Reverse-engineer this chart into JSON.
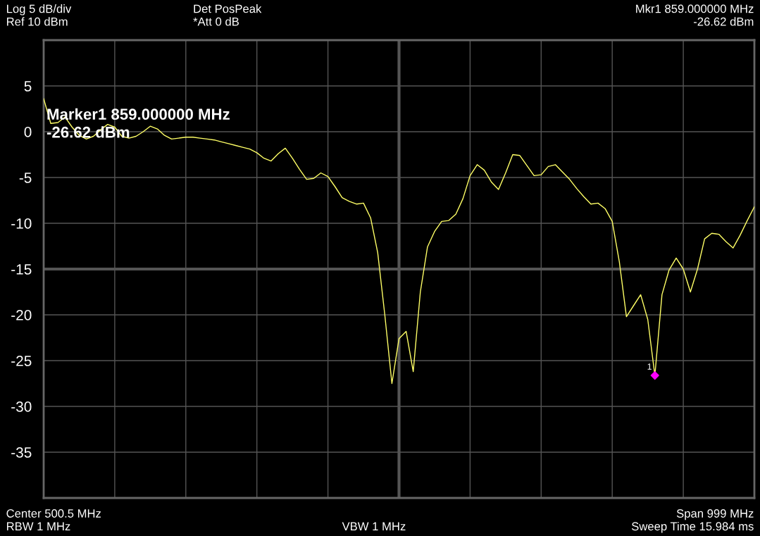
{
  "chart_data": {
    "type": "line",
    "annotations": [
      "Log 5 dB/div",
      "Ref 10 dBm",
      "Det PosPeak",
      "*Att 0 dB",
      "Mkr1 859.000000 MHz",
      "-26.62 dBm",
      "Center 500.5 MHz",
      "RBW 1 MHz",
      "VBW 1 MHz",
      "Span 999 MHz",
      "Sweep Time 15.984 ms",
      "Marker1 859.000000 MHz\n-26.62 dBm",
      {
        "text": "1",
        "y": -26.62
      }
    ],
    "categories": [
      null,
      null,
      null,
      null,
      null,
      null,
      null,
      null,
      null,
      null,
      null,
      null,
      null,
      null,
      null,
      null,
      null,
      null,
      null,
      null,
      null,
      null,
      null,
      null,
      null,
      null,
      null,
      null,
      null,
      null,
      null,
      null,
      null,
      null,
      null,
      null,
      null,
      null,
      null,
      null,
      null,
      null,
      null,
      null,
      null,
      null,
      null,
      null,
      null,
      null,
      null,
      null,
      null,
      null,
      null,
      null,
      null,
      null,
      null,
      null,
      null,
      null,
      null,
      null,
      null,
      null,
      null,
      null,
      null,
      null,
      null,
      null,
      null,
      null,
      null,
      null,
      null,
      null,
      null,
      null,
      null,
      null,
      null,
      null,
      null,
      null,
      null,
      null,
      null,
      null,
      null,
      null,
      null,
      null,
      null,
      null,
      null,
      null,
      null,
      null,
      null
    ],
    "ylim": [
      -40,
      10
    ],
    "yticks": [
      5,
      0,
      -5,
      -10,
      -15,
      -20,
      -25,
      -30,
      -35
    ],
    "tick_labels": "y",
    "grid": true,
    "series": [
      {
        "color": "#ffff66",
        "values": [
          3.6,
          0.9,
          1.0,
          1.6,
          0.5,
          -0.4,
          -0.8,
          -0.5,
          0.2,
          0.8,
          0.5,
          -0.5,
          -0.7,
          -0.5,
          0.0,
          0.6,
          0.3,
          -0.4,
          -0.8,
          -0.7,
          -0.6,
          -0.6,
          -0.7,
          -0.8,
          -0.9,
          -1.1,
          -1.3,
          -1.5,
          -1.7,
          -1.9,
          -2.3,
          -2.9,
          -3.2,
          -2.4,
          -1.8,
          -2.9,
          -4.1,
          -5.2,
          -5.1,
          -4.5,
          -4.9,
          -6.0,
          -7.2,
          -7.6,
          -7.9,
          -7.8,
          -9.4,
          -13.2,
          -20.0,
          -27.5,
          -22.6,
          -21.8,
          -26.2,
          -17.5,
          -12.6,
          -10.9,
          -9.8,
          -9.7,
          -9.0,
          -7.3,
          -4.8,
          -3.6,
          -4.2,
          -5.5,
          -6.3,
          -4.5,
          -2.5,
          -2.6,
          -3.7,
          -4.8,
          -4.7,
          -3.8,
          -3.6,
          -4.4,
          -5.2,
          -6.2,
          -7.1,
          -7.9,
          -7.8,
          -8.4,
          -9.8,
          -14.2,
          -20.2,
          -19.0,
          -17.8,
          -20.5,
          -26.62,
          -17.8,
          -15.1,
          -13.8,
          -15.0,
          -17.5,
          -15.0,
          -11.7,
          -11.1,
          -11.2,
          -12.0,
          -12.7,
          -11.3,
          -9.7,
          -8.2
        ]
      },
      {
        "type": "scatter",
        "color": "#ff00ff",
        "marker": "diamond",
        "values": [
          null,
          null,
          null,
          null,
          null,
          null,
          null,
          null,
          null,
          null,
          null,
          null,
          null,
          null,
          null,
          null,
          null,
          null,
          null,
          null,
          null,
          null,
          null,
          null,
          null,
          null,
          null,
          null,
          null,
          null,
          null,
          null,
          null,
          null,
          null,
          null,
          null,
          null,
          null,
          null,
          null,
          null,
          null,
          null,
          null,
          null,
          null,
          null,
          null,
          null,
          null,
          null,
          null,
          null,
          null,
          null,
          null,
          null,
          null,
          null,
          null,
          null,
          null,
          null,
          null,
          null,
          null,
          null,
          null,
          null,
          null,
          null,
          null,
          null,
          null,
          null,
          null,
          null,
          null,
          null,
          null,
          null,
          null,
          null,
          null,
          null,
          -26.62,
          null,
          null,
          null,
          null,
          null,
          null,
          null,
          null,
          null,
          null,
          null,
          null,
          null,
          null
        ]
      }
    ]
  }
}
